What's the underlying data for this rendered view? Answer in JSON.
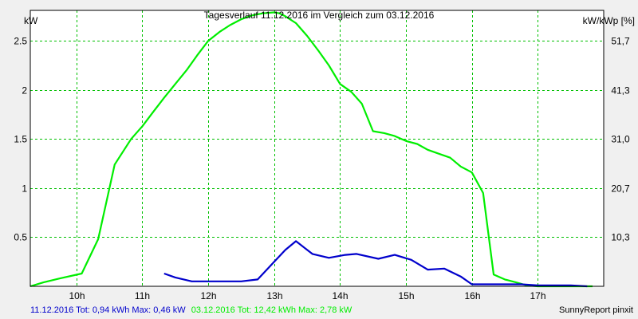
{
  "chart_data": {
    "type": "line",
    "title": "Tagesverlauf 11.12.2016 im Vergleich zum 03.12.2016",
    "ylabel_left": "kW",
    "ylabel_right": "kW/kWp [%]",
    "xlim": [
      9.3,
      18.0
    ],
    "ylim": [
      0,
      2.81
    ],
    "x_ticks": [
      10,
      11,
      12,
      13,
      14,
      15,
      16,
      17
    ],
    "x_tick_labels": [
      "10h",
      "11h",
      "12h",
      "13h",
      "14h",
      "15h",
      "16h",
      "17h"
    ],
    "y_ticks": [
      0.5,
      1,
      1.5,
      2,
      2.5
    ],
    "y_tick_labels": [
      "0.5",
      "1",
      "1.5",
      "2",
      "2.5"
    ],
    "y_right_ticks": [
      0.5,
      1,
      1.5,
      2,
      2.5
    ],
    "y_right_tick_labels": [
      "10,3",
      "20,7",
      "31,0",
      "41,3",
      "51,7"
    ],
    "grid": true,
    "colors": {
      "plot_background": "#ffffff",
      "grid": "#00c000",
      "series_0312": "#00ee00",
      "series_1112": "#0000cc"
    },
    "series": [
      {
        "name": "03.12.2016",
        "color": "#00ee00",
        "x": [
          9.3,
          9.5,
          9.75,
          10.08,
          10.33,
          10.58,
          10.83,
          11.0,
          11.17,
          11.33,
          11.5,
          11.67,
          11.83,
          12.0,
          12.17,
          12.33,
          12.5,
          12.67,
          12.83,
          13.0,
          13.08,
          13.17,
          13.33,
          13.5,
          13.67,
          13.83,
          14.0,
          14.17,
          14.33,
          14.5,
          14.67,
          14.83,
          15.0,
          15.17,
          15.33,
          15.5,
          15.67,
          15.83,
          16.0,
          16.17,
          16.33,
          16.5,
          16.67,
          16.83,
          17.0,
          17.17,
          17.33,
          17.5,
          17.67,
          17.83
        ],
        "y": [
          0.0,
          0.04,
          0.08,
          0.13,
          0.48,
          1.24,
          1.5,
          1.63,
          1.78,
          1.92,
          2.06,
          2.2,
          2.35,
          2.5,
          2.59,
          2.66,
          2.72,
          2.76,
          2.78,
          2.79,
          2.78,
          2.75,
          2.68,
          2.55,
          2.4,
          2.25,
          2.06,
          1.98,
          1.86,
          1.58,
          1.56,
          1.53,
          1.48,
          1.45,
          1.39,
          1.35,
          1.31,
          1.22,
          1.16,
          0.95,
          0.12,
          0.07,
          0.04,
          0.01,
          0.0,
          0.0,
          0.0,
          0.0,
          0.0,
          0.0
        ]
      },
      {
        "name": "11.12.2016",
        "color": "#0000cc",
        "x": [
          11.33,
          11.5,
          11.75,
          12.0,
          12.25,
          12.5,
          12.75,
          13.0,
          13.17,
          13.33,
          13.58,
          13.83,
          14.08,
          14.25,
          14.58,
          14.83,
          15.08,
          15.33,
          15.58,
          15.83,
          16.0,
          16.25,
          16.5,
          16.75,
          17.0,
          17.25,
          17.5,
          17.75
        ],
        "y": [
          0.13,
          0.09,
          0.05,
          0.05,
          0.05,
          0.05,
          0.07,
          0.25,
          0.37,
          0.46,
          0.33,
          0.29,
          0.32,
          0.33,
          0.28,
          0.32,
          0.27,
          0.17,
          0.18,
          0.1,
          0.02,
          0.02,
          0.02,
          0.02,
          0.01,
          0.01,
          0.01,
          0.0
        ]
      }
    ]
  },
  "footer": {
    "left_series_text": "11.12.2016 Tot: 0,94 kWh Max: 0,46 kW",
    "right_series_text": "03.12.2016 Tot: 12,42 kWh Max: 2,78 kW",
    "credit": "SunnyReport pinxit"
  }
}
